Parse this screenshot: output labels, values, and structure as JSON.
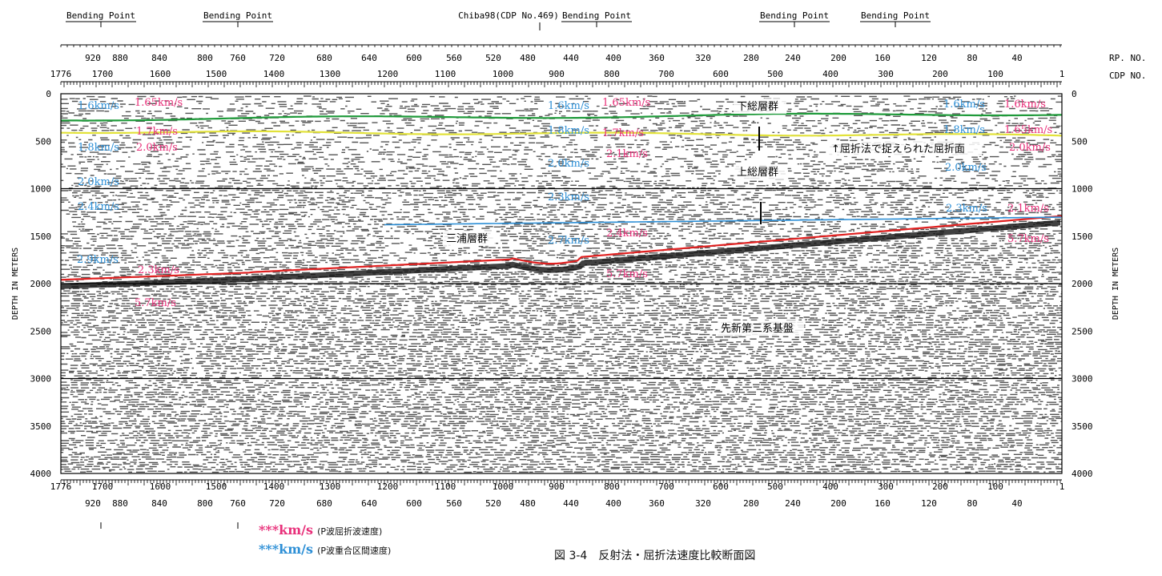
{
  "header": {
    "bending_point_label": "Bending Point",
    "chiba_label": "Chiba98(CDP No.469)",
    "rp_label": "RP. NO.",
    "cdp_label": "CDP NO."
  },
  "caption": "図 3-4　反射法・屈折法速度比較断面図",
  "legend": [
    {
      "marker": "***km/s",
      "text": "(P波屈折波速度)",
      "color": "#e8307a"
    },
    {
      "marker": "***km/s",
      "text": "(P波重合区間速度)",
      "color": "#2d8fd6"
    }
  ],
  "chart_data": {
    "type": "seismic-section",
    "ylabel": "DEPTH IN METERS",
    "ylim": [
      0,
      4000
    ],
    "y_ticks": [
      "0",
      "500",
      "1000",
      "1500",
      "2000",
      "2500",
      "3000",
      "3500",
      "4000"
    ],
    "rp_ticks": [
      "920",
      "880",
      "840",
      "800",
      "760",
      "720",
      "680",
      "640",
      "600",
      "560",
      "520",
      "480",
      "440",
      "400",
      "360",
      "320",
      "280",
      "240",
      "200",
      "160",
      "120",
      "80",
      "40"
    ],
    "cdp_ticks": [
      "1776",
      "1700",
      "1600",
      "1500",
      "1400",
      "1300",
      "1200",
      "1100",
      "1000",
      "900",
      "800",
      "700",
      "600",
      "500",
      "400",
      "300",
      "200",
      "100",
      "1"
    ],
    "colors": {
      "refraction": "#e8307a",
      "interval": "#2d8fd6",
      "green": "#1f9a3a",
      "yellow": "#e2e23a",
      "red": "#e02020"
    },
    "annotations": [
      {
        "text": "下総層群",
        "kind": "jp"
      },
      {
        "text": "上総層群",
        "kind": "jp"
      },
      {
        "text": "↑屈折法で捉えられた屈折面",
        "kind": "jp"
      },
      {
        "text": "三浦層群",
        "kind": "jp"
      },
      {
        "text": "先新第三系基盤",
        "kind": "jp"
      }
    ],
    "velocity_labels": [
      {
        "text": "1.6km/s",
        "color": "blue"
      },
      {
        "text": "1.65km/s",
        "color": "pink"
      },
      {
        "text": "1.7km/s",
        "color": "pink"
      },
      {
        "text": "1.8km/s",
        "color": "blue"
      },
      {
        "text": "2.0km/s",
        "color": "pink"
      },
      {
        "text": "2.0km/s",
        "color": "blue"
      },
      {
        "text": "2.4km/s",
        "color": "blue"
      },
      {
        "text": "2.9km/s",
        "color": "blue"
      },
      {
        "text": "2.3km/s",
        "color": "pink"
      },
      {
        "text": "5.7km/s",
        "color": "pink"
      },
      {
        "text": "1.6km/s",
        "color": "blue"
      },
      {
        "text": "1.65km/s",
        "color": "pink"
      },
      {
        "text": "1.8km/s",
        "color": "blue"
      },
      {
        "text": "1.7km/s",
        "color": "pink"
      },
      {
        "text": "2.1km/s",
        "color": "pink"
      },
      {
        "text": "2.0km/s",
        "color": "blue"
      },
      {
        "text": "2.3km/s",
        "color": "blue"
      },
      {
        "text": "2.7km/s",
        "color": "blue"
      },
      {
        "text": "2.4km/s",
        "color": "pink"
      },
      {
        "text": "5.7km/s",
        "color": "pink"
      },
      {
        "text": "1.6km/s",
        "color": "blue"
      },
      {
        "text": "1.6km/s",
        "color": "pink"
      },
      {
        "text": "1.8km/s",
        "color": "blue"
      },
      {
        "text": "1.65km/s",
        "color": "pink"
      },
      {
        "text": "2.0km/s",
        "color": "pink"
      },
      {
        "text": "2.0km/s",
        "color": "blue"
      },
      {
        "text": "2.3km/s",
        "color": "blue"
      },
      {
        "text": "2.1km/s",
        "color": "pink"
      },
      {
        "text": "5.7km/s",
        "color": "pink"
      }
    ]
  }
}
